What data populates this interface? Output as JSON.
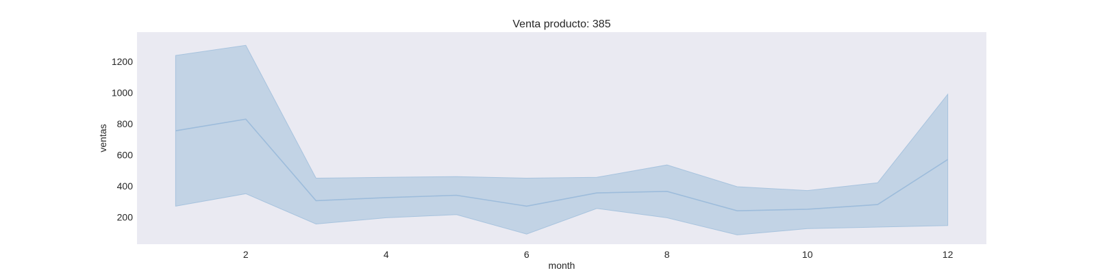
{
  "chart_data": {
    "type": "line",
    "title": "Venta producto: 385",
    "xlabel": "month",
    "ylabel": "ventas",
    "xlim": [
      0.45,
      12.55
    ],
    "ylim": [
      25,
      1390
    ],
    "xticks": [
      2,
      4,
      6,
      8,
      10,
      12
    ],
    "yticks": [
      200,
      400,
      600,
      800,
      1000,
      1200
    ],
    "grid": false,
    "x": [
      1,
      2,
      3,
      4,
      5,
      6,
      7,
      8,
      9,
      10,
      11,
      12
    ],
    "series": [
      {
        "values": [
          755,
          830,
          305,
          325,
          340,
          270,
          355,
          365,
          240,
          250,
          280,
          570
        ],
        "lower": [
          270,
          350,
          155,
          195,
          215,
          90,
          255,
          195,
          85,
          125,
          135,
          145
        ],
        "upper": [
          1240,
          1305,
          450,
          455,
          460,
          450,
          455,
          535,
          395,
          370,
          420,
          990
        ]
      }
    ],
    "colors": {
      "background": "#eaeaf2",
      "band": "#c2d3e5",
      "band_edge": "#a7c3de",
      "line": "#9dbcdb"
    }
  }
}
